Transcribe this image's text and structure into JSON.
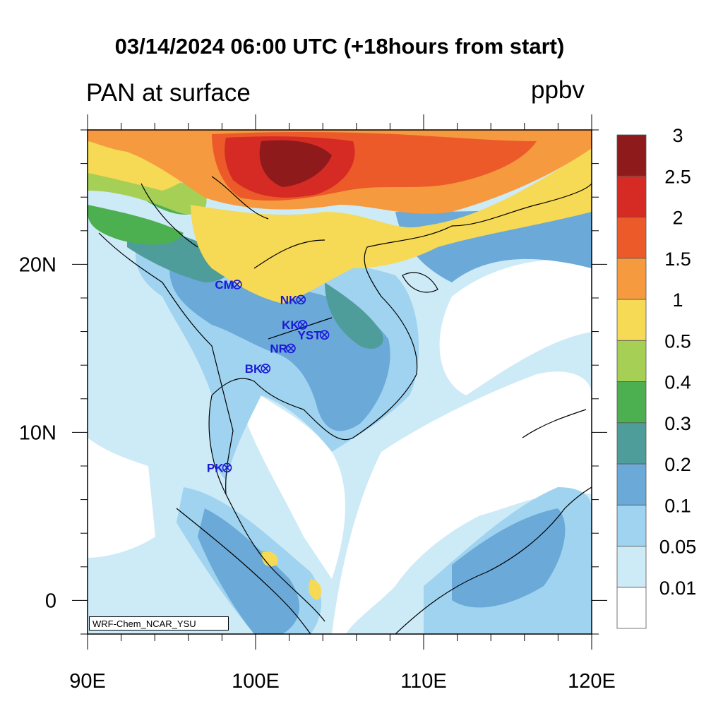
{
  "title": "03/14/2024 06:00 UTC (+18hours from start)",
  "variable_label": "PAN at surface",
  "units": "ppbv",
  "credit": "WRF-Chem_NCAR_YSU",
  "map": {
    "lon_range": [
      90,
      120
    ],
    "lat_range": [
      -2,
      28
    ],
    "lon_ticks": [
      {
        "value": 90,
        "label": "90E"
      },
      {
        "value": 100,
        "label": "100E"
      },
      {
        "value": 110,
        "label": "110E"
      },
      {
        "value": 120,
        "label": "120E"
      }
    ],
    "lat_ticks": [
      {
        "value": 0,
        "label": "0"
      },
      {
        "value": 10,
        "label": "10N"
      },
      {
        "value": 20,
        "label": "20N"
      }
    ],
    "stations": [
      {
        "code": "CM",
        "lon": 98.9,
        "lat": 18.8
      },
      {
        "code": "NK",
        "lon": 102.7,
        "lat": 17.9
      },
      {
        "code": "KK",
        "lon": 102.8,
        "lat": 16.4
      },
      {
        "code": "YST",
        "lon": 104.1,
        "lat": 15.8
      },
      {
        "code": "NR",
        "lon": 102.1,
        "lat": 15.0
      },
      {
        "code": "BK",
        "lon": 100.6,
        "lat": 13.8
      },
      {
        "code": "PK",
        "lon": 98.3,
        "lat": 7.9
      }
    ]
  },
  "colorbar": {
    "levels": [
      "0.01",
      "0.05",
      "0.1",
      "0.2",
      "0.3",
      "0.4",
      "0.5",
      "1",
      "1.5",
      "2",
      "2.5",
      "3"
    ],
    "colors": [
      "#ffffff",
      "#cdeaf7",
      "#9fd3ef",
      "#6aa9d8",
      "#4f9d9a",
      "#4caf50",
      "#a6cf55",
      "#f6d955",
      "#f59a3f",
      "#ec5a2a",
      "#d52b24",
      "#8f1a1c"
    ]
  }
}
